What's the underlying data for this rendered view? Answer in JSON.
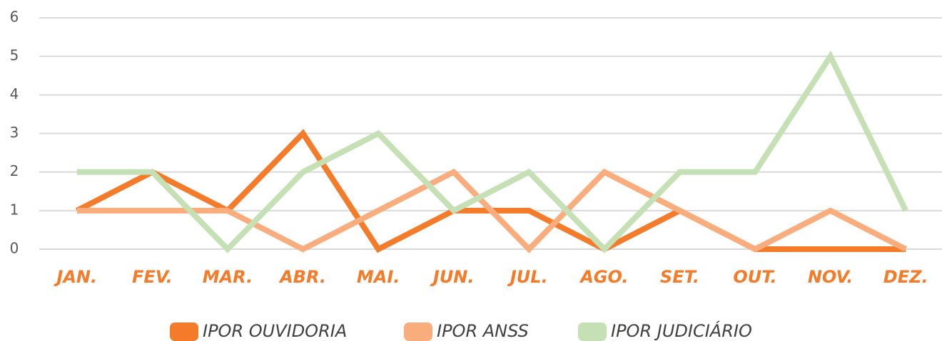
{
  "chart_data": {
    "type": "line",
    "categories": [
      "JAN.",
      "FEV.",
      "MAR.",
      "ABR.",
      "MAI.",
      "JUN.",
      "JUL.",
      "AGO.",
      "SET.",
      "OUT.",
      "NOV.",
      "DEZ."
    ],
    "series": [
      {
        "name": "IPOR OUVIDORIA",
        "color": "#f47b2a",
        "values": [
          1,
          2,
          1,
          3,
          0,
          1,
          1,
          0,
          1,
          0,
          0,
          0
        ]
      },
      {
        "name": "IPOR ANSS",
        "color": "#f9ad7c",
        "values": [
          1,
          1,
          1,
          0,
          1,
          2,
          0,
          2,
          1,
          0,
          1,
          0
        ]
      },
      {
        "name": "IPOR JUDICIÁRIO",
        "color": "#c6e0b5",
        "values": [
          2,
          2,
          0,
          2,
          3,
          1,
          2,
          0,
          2,
          2,
          5,
          1
        ]
      }
    ],
    "ylim": [
      0,
      6
    ],
    "yticks": [
      0,
      1,
      2,
      3,
      4,
      5,
      6
    ],
    "grid": true,
    "legend": "bottom"
  }
}
